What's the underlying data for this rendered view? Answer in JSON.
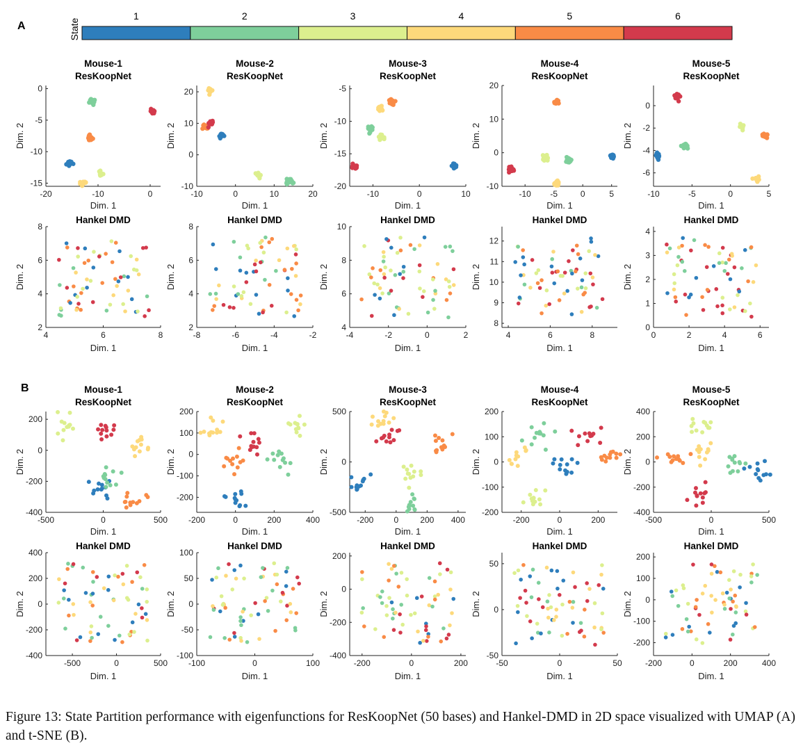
{
  "panel_labels": [
    "A",
    "B"
  ],
  "state_bar": {
    "label": "State",
    "states": [
      "1",
      "2",
      "3",
      "4",
      "5",
      "6"
    ],
    "colors": [
      "#2e7ebc",
      "#7ecf9b",
      "#dcef8e",
      "#fdd97b",
      "#f98b46",
      "#d33a4c"
    ]
  },
  "caption": "Figure 13: State Partition performance with eigenfunctions for ResKoopNet (50 bases) and Hankel-DMD in 2D space visualized with UMAP (A) and t-SNE (B).",
  "chart_data": [
    {
      "type": "scatter",
      "section": "A",
      "mouse": "Mouse-1",
      "title": [
        "Mouse-1",
        "ResKoopNet"
      ],
      "xlabel": "Dim. 1",
      "ylabel": "Dim. 2",
      "xlim": [
        -20,
        2
      ],
      "ylim": [
        -15.5,
        0.5
      ],
      "xticks": [
        "-20",
        "-10",
        "0"
      ],
      "yticks": [
        "0",
        "-5",
        "-10",
        "-15"
      ],
      "clusters": [
        {
          "state": 1,
          "x": -15.5,
          "y": -11.8
        },
        {
          "state": 2,
          "x": -11,
          "y": -2
        },
        {
          "state": 3,
          "x": -9.5,
          "y": -13.5
        },
        {
          "state": 4,
          "x": -13,
          "y": -15
        },
        {
          "state": 5,
          "x": -11.5,
          "y": -7.8
        },
        {
          "state": 6,
          "x": 0.5,
          "y": -3.5
        }
      ]
    },
    {
      "type": "scatter",
      "section": "A",
      "mouse": "Mouse-2",
      "title": [
        "Mouse-2",
        "ResKoopNet"
      ],
      "xlabel": "Dim. 1",
      "ylabel": "Dim. 2",
      "xlim": [
        -10,
        20
      ],
      "ylim": [
        -10,
        22
      ],
      "xticks": [
        "-10",
        "0",
        "10",
        "20"
      ],
      "yticks": [
        "20",
        "10",
        "0",
        "-10"
      ],
      "clusters": [
        {
          "state": 1,
          "x": -3.5,
          "y": 6.5
        },
        {
          "state": 2,
          "x": 14,
          "y": -8.5
        },
        {
          "state": 3,
          "x": 6,
          "y": -6.5
        },
        {
          "state": 4,
          "x": -6.5,
          "y": 20.5
        },
        {
          "state": 5,
          "x": -7.8,
          "y": 9
        },
        {
          "state": 6,
          "x": -6.3,
          "y": 10
        }
      ]
    },
    {
      "type": "scatter",
      "section": "A",
      "mouse": "Mouse-3",
      "title": [
        "Mouse-3",
        "ResKoopNet"
      ],
      "xlabel": "Dim. 1",
      "ylabel": "Dim. 2",
      "xlim": [
        -15,
        10
      ],
      "ylim": [
        -20,
        -4.5
      ],
      "xticks": [
        "-10",
        "0",
        "10"
      ],
      "yticks": [
        "-5",
        "-10",
        "-15",
        "-20"
      ],
      "clusters": [
        {
          "state": 1,
          "x": 7.5,
          "y": -16.8
        },
        {
          "state": 2,
          "x": -10.5,
          "y": -11.2
        },
        {
          "state": 3,
          "x": -8,
          "y": -12.5
        },
        {
          "state": 4,
          "x": -8.5,
          "y": -8
        },
        {
          "state": 5,
          "x": -6,
          "y": -7
        },
        {
          "state": 6,
          "x": -14,
          "y": -17
        }
      ]
    },
    {
      "type": "scatter",
      "section": "A",
      "mouse": "Mouse-4",
      "title": [
        "Mouse-4",
        "ResKoopNet"
      ],
      "xlabel": "Dim. 1",
      "ylabel": "Dim. 2",
      "xlim": [
        -14,
        6
      ],
      "ylim": [
        -10,
        20
      ],
      "xticks": [
        "-10",
        "-5",
        "0",
        "5"
      ],
      "yticks": [
        "20",
        "10",
        "0",
        "-10"
      ],
      "clusters": [
        {
          "state": 1,
          "x": 5,
          "y": -1
        },
        {
          "state": 2,
          "x": -2.5,
          "y": -2.3
        },
        {
          "state": 3,
          "x": -6.5,
          "y": -1.5
        },
        {
          "state": 4,
          "x": -4.5,
          "y": -9.3
        },
        {
          "state": 5,
          "x": -4.5,
          "y": 15
        },
        {
          "state": 6,
          "x": -12.5,
          "y": -5.2
        }
      ]
    },
    {
      "type": "scatter",
      "section": "A",
      "mouse": "Mouse-5",
      "title": [
        "Mouse-5",
        "ResKoopNet"
      ],
      "xlabel": "Dim. 1",
      "ylabel": "Dim. 2",
      "xlim": [
        -10,
        5
      ],
      "ylim": [
        -7.2,
        1.8
      ],
      "xticks": [
        "-10",
        "-5",
        "0",
        "5"
      ],
      "yticks": [
        "0",
        "-2",
        "-4",
        "-6"
      ],
      "clusters": [
        {
          "state": 1,
          "x": -9.5,
          "y": -4.4
        },
        {
          "state": 2,
          "x": -6,
          "y": -3.6
        },
        {
          "state": 3,
          "x": 1.5,
          "y": -1.8
        },
        {
          "state": 4,
          "x": 3.5,
          "y": -6.6
        },
        {
          "state": 5,
          "x": 4.5,
          "y": -2.6
        },
        {
          "state": 6,
          "x": -7,
          "y": 0.8
        }
      ]
    },
    {
      "type": "scatter",
      "section": "A",
      "mouse": "Mouse-1",
      "title": [
        "Hankel DMD"
      ],
      "xlabel": "Dim. 1",
      "ylabel": "Dim. 2",
      "xlim": [
        4,
        8
      ],
      "ylim": [
        2,
        8
      ],
      "xticks": [
        "4",
        "6",
        "8"
      ],
      "yticks": [
        "8",
        "6",
        "4",
        "2"
      ]
    },
    {
      "type": "scatter",
      "section": "A",
      "mouse": "Mouse-2",
      "title": [
        "Hankel DMD"
      ],
      "xlabel": "Dim. 1",
      "ylabel": "Dim. 2",
      "xlim": [
        -8,
        -2
      ],
      "ylim": [
        2,
        8
      ],
      "xticks": [
        "-8",
        "-6",
        "-4",
        "-2"
      ],
      "yticks": [
        "8",
        "6",
        "4",
        "2"
      ]
    },
    {
      "type": "scatter",
      "section": "A",
      "mouse": "Mouse-3",
      "title": [
        "Hankel DMD"
      ],
      "xlabel": "Dim. 1",
      "ylabel": "Dim. 2",
      "xlim": [
        -4,
        2
      ],
      "ylim": [
        4,
        10
      ],
      "xticks": [
        "-4",
        "-2",
        "0",
        "2"
      ],
      "yticks": [
        "10",
        "8",
        "6",
        "4"
      ]
    },
    {
      "type": "scatter",
      "section": "A",
      "mouse": "Mouse-4",
      "title": [
        "Hankel DMD"
      ],
      "xlabel": "Dim. 1",
      "ylabel": "Dim. 2",
      "xlim": [
        3.7,
        9.2
      ],
      "ylim": [
        7.8,
        12.7
      ],
      "xticks": [
        "4",
        "6",
        "8"
      ],
      "yticks": [
        "12",
        "11",
        "10",
        "9",
        "8"
      ]
    },
    {
      "type": "scatter",
      "section": "A",
      "mouse": "Mouse-5",
      "title": [
        "Hankel DMD"
      ],
      "xlabel": "Dim. 1",
      "ylabel": "Dim. 2",
      "xlim": [
        0,
        6.5
      ],
      "ylim": [
        0,
        4.2
      ],
      "xticks": [
        "0",
        "2",
        "4",
        "6"
      ],
      "yticks": [
        "4",
        "3",
        "2",
        "1",
        "0"
      ]
    },
    {
      "type": "scatter",
      "section": "B",
      "mouse": "Mouse-1",
      "title": [
        "Mouse-1",
        "ResKoopNet"
      ],
      "xlabel": "Dim. 1",
      "ylabel": "Dim. 2",
      "xlim": [
        -500,
        500
      ],
      "ylim": [
        -400,
        250
      ],
      "xticks": [
        "-500",
        "0",
        "500"
      ],
      "yticks": [
        "200",
        "0",
        "-200",
        "-400"
      ],
      "clusters": [
        {
          "state": 1,
          "x": -20,
          "y": -270
        },
        {
          "state": 2,
          "x": 50,
          "y": -160
        },
        {
          "state": 3,
          "x": -330,
          "y": 160
        },
        {
          "state": 4,
          "x": 320,
          "y": 30
        },
        {
          "state": 5,
          "x": 250,
          "y": -320
        },
        {
          "state": 6,
          "x": 0,
          "y": 120
        }
      ]
    },
    {
      "type": "scatter",
      "section": "B",
      "mouse": "Mouse-2",
      "title": [
        "Mouse-2",
        "ResKoopNet"
      ],
      "xlabel": "Dim. 1",
      "ylabel": "Dim. 2",
      "xlim": [
        -200,
        400
      ],
      "ylim": [
        -270,
        200
      ],
      "xticks": [
        "-200",
        "0",
        "200",
        "400"
      ],
      "yticks": [
        "200",
        "100",
        "0",
        "-100",
        "-200"
      ],
      "clusters": [
        {
          "state": 1,
          "x": 0,
          "y": -210
        },
        {
          "state": 2,
          "x": 230,
          "y": -25
        },
        {
          "state": 3,
          "x": 320,
          "y": 130
        },
        {
          "state": 4,
          "x": -120,
          "y": 115
        },
        {
          "state": 5,
          "x": 0,
          "y": -45
        },
        {
          "state": 6,
          "x": 80,
          "y": 60
        }
      ]
    },
    {
      "type": "scatter",
      "section": "B",
      "mouse": "Mouse-3",
      "title": [
        "Mouse-3",
        "ResKoopNet"
      ],
      "xlabel": "Dim. 1",
      "ylabel": "Dim. 2",
      "xlim": [
        -300,
        450
      ],
      "ylim": [
        -500,
        500
      ],
      "xticks": [
        "-200",
        "0",
        "200",
        "400"
      ],
      "yticks": [
        "500",
        "0",
        "-500"
      ],
      "clusters": [
        {
          "state": 1,
          "x": -230,
          "y": -200
        },
        {
          "state": 2,
          "x": 80,
          "y": -430
        },
        {
          "state": 3,
          "x": 100,
          "y": -100
        },
        {
          "state": 4,
          "x": -100,
          "y": 420
        },
        {
          "state": 5,
          "x": 300,
          "y": 180
        },
        {
          "state": 6,
          "x": -50,
          "y": 220
        }
      ]
    },
    {
      "type": "scatter",
      "section": "B",
      "mouse": "Mouse-4",
      "title": [
        "Mouse-4",
        "ResKoopNet"
      ],
      "xlabel": "Dim. 1",
      "ylabel": "Dim. 2",
      "xlim": [
        -300,
        300
      ],
      "ylim": [
        -200,
        200
      ],
      "xticks": [
        "-200",
        "0",
        "200"
      ],
      "yticks": [
        "200",
        "100",
        "0",
        "-100",
        "-200"
      ],
      "clusters": [
        {
          "state": 1,
          "x": 30,
          "y": -20
        },
        {
          "state": 2,
          "x": -100,
          "y": 110
        },
        {
          "state": 3,
          "x": -110,
          "y": -150
        },
        {
          "state": 4,
          "x": -240,
          "y": 20
        },
        {
          "state": 5,
          "x": 270,
          "y": 30
        },
        {
          "state": 6,
          "x": 150,
          "y": 115
        }
      ]
    },
    {
      "type": "scatter",
      "section": "B",
      "mouse": "Mouse-5",
      "title": [
        "Mouse-5",
        "ResKoopNet"
      ],
      "xlabel": "Dim. 1",
      "ylabel": "Dim. 2",
      "xlim": [
        -500,
        500
      ],
      "ylim": [
        -400,
        400
      ],
      "xticks": [
        "-500",
        "0",
        "500"
      ],
      "yticks": [
        "400",
        "200",
        "0",
        "-200",
        "-400"
      ],
      "clusters": [
        {
          "state": 1,
          "x": 400,
          "y": -70
        },
        {
          "state": 2,
          "x": 200,
          "y": 0
        },
        {
          "state": 3,
          "x": -100,
          "y": 300
        },
        {
          "state": 4,
          "x": -100,
          "y": 90
        },
        {
          "state": 5,
          "x": -350,
          "y": 20
        },
        {
          "state": 6,
          "x": -100,
          "y": -250
        }
      ]
    },
    {
      "type": "scatter",
      "section": "B",
      "mouse": "Mouse-1",
      "title": [
        "Hankel DMD"
      ],
      "xlabel": "Dim. 1",
      "ylabel": "Dim. 2",
      "xlim": [
        -800,
        500
      ],
      "ylim": [
        -400,
        400
      ],
      "xticks": [
        "-500",
        "0",
        "500"
      ],
      "yticks": [
        "400",
        "200",
        "0",
        "-200",
        "-400"
      ]
    },
    {
      "type": "scatter",
      "section": "B",
      "mouse": "Mouse-2",
      "title": [
        "Hankel DMD"
      ],
      "xlabel": "Dim. 1",
      "ylabel": "Dim. 2",
      "xlim": [
        -100,
        100
      ],
      "ylim": [
        -100,
        100
      ],
      "xticks": [
        "-100",
        "0",
        "100"
      ],
      "yticks": [
        "100",
        "50",
        "0",
        "-50",
        "-100"
      ]
    },
    {
      "type": "scatter",
      "section": "B",
      "mouse": "Mouse-3",
      "title": [
        "Hankel DMD"
      ],
      "xlabel": "Dim. 1",
      "ylabel": "Dim. 2",
      "xlim": [
        -250,
        220
      ],
      "ylim": [
        -400,
        220
      ],
      "xticks": [
        "-200",
        "0",
        "200"
      ],
      "yticks": [
        "200",
        "0",
        "-200",
        "-400"
      ]
    },
    {
      "type": "scatter",
      "section": "B",
      "mouse": "Mouse-4",
      "title": [
        "Hankel DMD"
      ],
      "xlabel": "Dim. 1",
      "ylabel": "Dim. 2",
      "xlim": [
        -50,
        50
      ],
      "ylim": [
        -50,
        62
      ],
      "xticks": [
        "-50",
        "0",
        "50"
      ],
      "yticks": [
        "50",
        "0",
        "-50"
      ]
    },
    {
      "type": "scatter",
      "section": "B",
      "mouse": "Mouse-5",
      "title": [
        "Hankel DMD"
      ],
      "xlabel": "Dim. 1",
      "ylabel": "Dim. 2",
      "xlim": [
        -200,
        400
      ],
      "ylim": [
        -260,
        220
      ],
      "xticks": [
        "-200",
        "0",
        "200",
        "400"
      ],
      "yticks": [
        "200",
        "100",
        "0",
        "-100",
        "-200"
      ]
    }
  ]
}
